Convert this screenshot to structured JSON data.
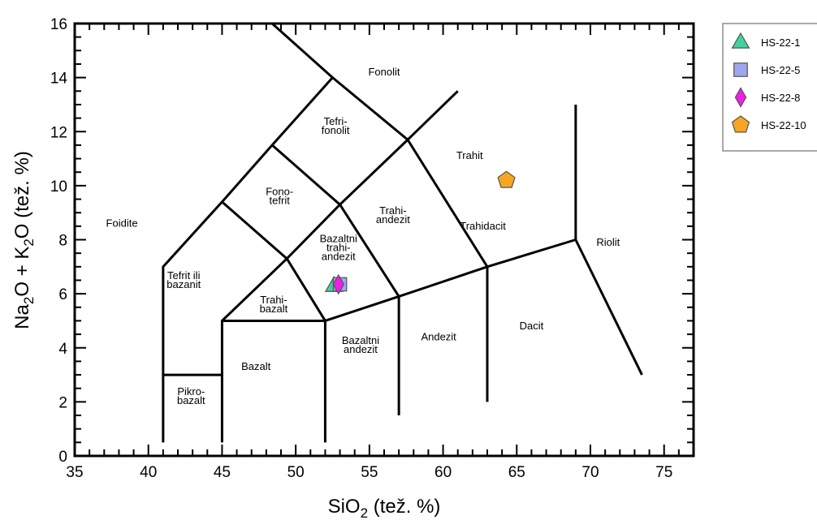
{
  "chart_data": {
    "type": "scatter",
    "xlabel": {
      "main": "SiO",
      "sub": "2",
      "rest": " (tež. %)"
    },
    "ylabel": {
      "p1": "Na",
      "s1": "2",
      "p2": "O + K",
      "s2": "2",
      "p3": "O (tež. %)"
    },
    "xlim": [
      35,
      77
    ],
    "ylim": [
      0,
      16
    ],
    "x_ticks": [
      35,
      40,
      45,
      50,
      55,
      60,
      65,
      70,
      75
    ],
    "y_ticks": [
      0,
      2,
      4,
      6,
      8,
      10,
      12,
      14,
      16
    ],
    "x_tick_labels": [
      "35",
      "40",
      "45",
      "50",
      "55",
      "60",
      "65",
      "70",
      "75"
    ],
    "y_tick_labels": [
      "0",
      "2",
      "4",
      "6",
      "8",
      "10",
      "12",
      "14",
      "16"
    ],
    "grid": false,
    "legend_position": "outside-top-right",
    "boundaries": [
      [
        [
          41,
          0.5
        ],
        [
          41,
          7
        ],
        [
          45,
          9.4
        ],
        [
          48.4,
          11.5
        ],
        [
          52.5,
          14
        ],
        [
          48.4,
          16
        ]
      ],
      [
        [
          41,
          3
        ],
        [
          45,
          3
        ]
      ],
      [
        [
          45,
          0.5
        ],
        [
          45,
          5
        ],
        [
          49.4,
          7.3
        ],
        [
          53,
          9.3
        ],
        [
          57.6,
          11.7
        ],
        [
          61,
          13.5
        ]
      ],
      [
        [
          45,
          5
        ],
        [
          52,
          5
        ],
        [
          52,
          0.5
        ]
      ],
      [
        [
          52,
          5
        ],
        [
          57,
          5.9
        ],
        [
          63,
          7
        ],
        [
          69,
          8
        ],
        [
          73.5,
          3
        ]
      ],
      [
        [
          57,
          1.5
        ],
        [
          57,
          5.9
        ],
        [
          53,
          9.3
        ],
        [
          48.4,
          11.5
        ]
      ],
      [
        [
          63,
          2
        ],
        [
          63,
          7
        ],
        [
          57.6,
          11.7
        ],
        [
          52.5,
          14
        ]
      ],
      [
        [
          45,
          9.4
        ],
        [
          49.4,
          7.3
        ],
        [
          52,
          5
        ]
      ],
      [
        [
          69,
          8
        ],
        [
          69,
          13
        ]
      ]
    ],
    "fields": [
      {
        "name": "Fonolit",
        "lines": [
          "Fonolit"
        ],
        "x": 56,
        "y": 14.2
      },
      {
        "name": "Tefri-fonolit",
        "lines": [
          "Tefri-",
          "fonolit"
        ],
        "x": 52.7,
        "y": 12.2
      },
      {
        "name": "Fono-tefrit",
        "lines": [
          "Fono-",
          "tefrit"
        ],
        "x": 48.9,
        "y": 9.6
      },
      {
        "name": "Foidite",
        "lines": [
          "Foidite"
        ],
        "x": 38.2,
        "y": 8.6
      },
      {
        "name": "Tefrit ili bazanit",
        "lines": [
          "Tefrit ili",
          "bazanit"
        ],
        "x": 42.4,
        "y": 6.5
      },
      {
        "name": "Trahi-bazalt",
        "lines": [
          "Trahi-",
          "bazalt"
        ],
        "x": 48.5,
        "y": 5.6
      },
      {
        "name": "Bazaltni trahi-andezit",
        "lines": [
          "Bazaltni",
          "trahi-",
          "andezit"
        ],
        "x": 52.9,
        "y": 7.7
      },
      {
        "name": "Trahi-andezit",
        "lines": [
          "Trahi-",
          "andezit"
        ],
        "x": 56.6,
        "y": 8.9
      },
      {
        "name": "Trahit",
        "lines": [
          "Trahit"
        ],
        "x": 61.8,
        "y": 11.1
      },
      {
        "name": "Trahidacit",
        "lines": [
          "Trahidacit"
        ],
        "x": 62.7,
        "y": 8.5
      },
      {
        "name": "Riolit",
        "lines": [
          "Riolit"
        ],
        "x": 71.2,
        "y": 7.9
      },
      {
        "name": "Dacit",
        "lines": [
          "Dacit"
        ],
        "x": 66,
        "y": 4.8
      },
      {
        "name": "Andezit",
        "lines": [
          "Andezit"
        ],
        "x": 59.7,
        "y": 4.4
      },
      {
        "name": "Bazaltni andezit",
        "lines": [
          "Bazaltni",
          "andezit"
        ],
        "x": 54.4,
        "y": 4.1
      },
      {
        "name": "Bazalt",
        "lines": [
          "Bazalt"
        ],
        "x": 47.3,
        "y": 3.3
      },
      {
        "name": "Pikro-bazalt",
        "lines": [
          "Pikro-",
          "bazalt"
        ],
        "x": 42.9,
        "y": 2.2
      }
    ],
    "series": [
      {
        "name": "HS-22-1",
        "marker": "triangle",
        "color": "#3fd49b",
        "x": [
          52.6
        ],
        "y": [
          6.3
        ]
      },
      {
        "name": "HS-22-5",
        "marker": "square",
        "color": "#9fa6f0",
        "x": [
          53.0
        ],
        "y": [
          6.35
        ]
      },
      {
        "name": "HS-22-8",
        "marker": "diamond",
        "color": "#ee1ee6",
        "x": [
          52.9
        ],
        "y": [
          6.35
        ]
      },
      {
        "name": "HS-22-10",
        "marker": "pentagon",
        "color": "#f7a623",
        "x": [
          64.3
        ],
        "y": [
          10.2
        ]
      }
    ]
  }
}
